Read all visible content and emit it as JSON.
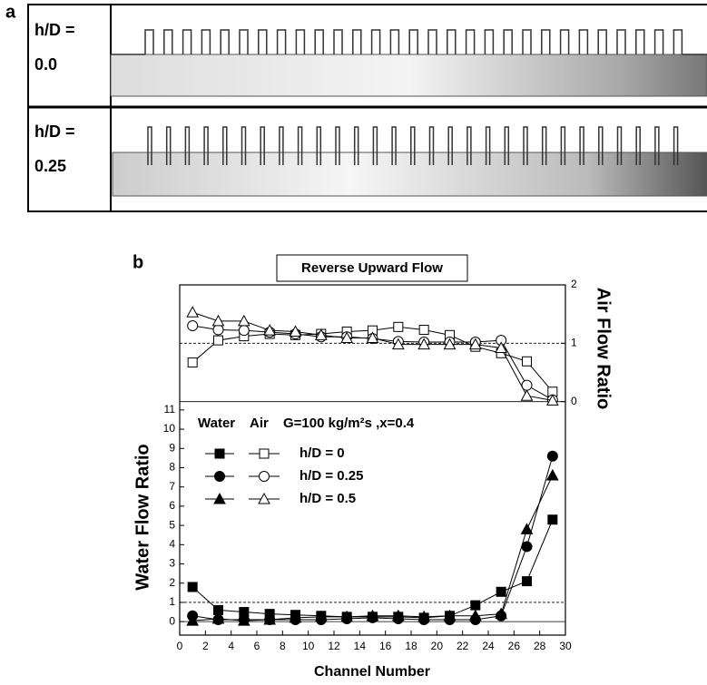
{
  "panel_a": {
    "label": "a",
    "rows": [
      {
        "line1": "h/D =",
        "line2": "0.0"
      },
      {
        "line1": "h/D =",
        "line2": "0.25"
      }
    ]
  },
  "chart_data": {
    "type": "line",
    "label": "b",
    "title": "Reverse Upward Flow",
    "xlabel": "Channel Number",
    "ylabel": "Water Flow Ratio",
    "y2label": "Air Flow Ratio",
    "legend_header": [
      "Water",
      "Air",
      "G=100 kg/m²s ,x=0.4"
    ],
    "xlim": [
      0,
      30
    ],
    "xticks": [
      0,
      2,
      4,
      6,
      8,
      10,
      12,
      14,
      16,
      18,
      20,
      22,
      24,
      26,
      28,
      30
    ],
    "ylim": [
      -0.7,
      17.5
    ],
    "yticks": [
      0,
      1,
      2,
      3,
      4,
      5,
      6,
      7,
      8,
      9,
      10,
      11
    ],
    "y2lim": [
      -4,
      2
    ],
    "y2ticks": [
      0,
      1,
      2
    ],
    "hlines": [
      {
        "axis": "y",
        "value": 0,
        "style": "solid"
      },
      {
        "axis": "y",
        "value": 1,
        "style": "dashed"
      },
      {
        "axis": "y2",
        "value": 0,
        "style": "solid"
      },
      {
        "axis": "y2",
        "value": 1,
        "style": "dashed"
      }
    ],
    "x": [
      1,
      3,
      5,
      7,
      9,
      11,
      13,
      15,
      17,
      19,
      21,
      23,
      25,
      27,
      29
    ],
    "groups": [
      {
        "name": "h/D = 0",
        "marker": "square",
        "water": [
          1.8,
          0.6,
          0.5,
          0.4,
          0.35,
          0.3,
          0.25,
          0.25,
          0.25,
          0.2,
          0.3,
          0.85,
          1.55,
          2.1,
          5.3
        ],
        "air": [
          0.67,
          1.05,
          1.12,
          1.16,
          1.14,
          1.16,
          1.2,
          1.22,
          1.28,
          1.23,
          1.14,
          0.94,
          0.83,
          0.69,
          0.17
        ]
      },
      {
        "name": "h/D = 0.25",
        "marker": "circle",
        "water": [
          0.3,
          0.1,
          0.1,
          0.1,
          0.1,
          0.1,
          0.15,
          0.2,
          0.15,
          0.1,
          0.1,
          0.1,
          0.3,
          3.9,
          8.6
        ],
        "air": [
          1.3,
          1.23,
          1.22,
          1.19,
          1.16,
          1.11,
          1.11,
          1.08,
          1.03,
          1.02,
          1.02,
          1.02,
          1.05,
          0.28,
          0.03
        ]
      },
      {
        "name": "h/D = 0.5",
        "marker": "triangle",
        "water": [
          0.05,
          0.15,
          0.05,
          0.1,
          0.2,
          0.25,
          0.25,
          0.3,
          0.3,
          0.25,
          0.3,
          0.3,
          0.4,
          4.8,
          7.6
        ],
        "air": [
          1.53,
          1.38,
          1.38,
          1.22,
          1.2,
          1.14,
          1.09,
          1.09,
          0.98,
          0.98,
          0.98,
          0.98,
          0.92,
          0.1,
          0.02
        ]
      }
    ]
  }
}
